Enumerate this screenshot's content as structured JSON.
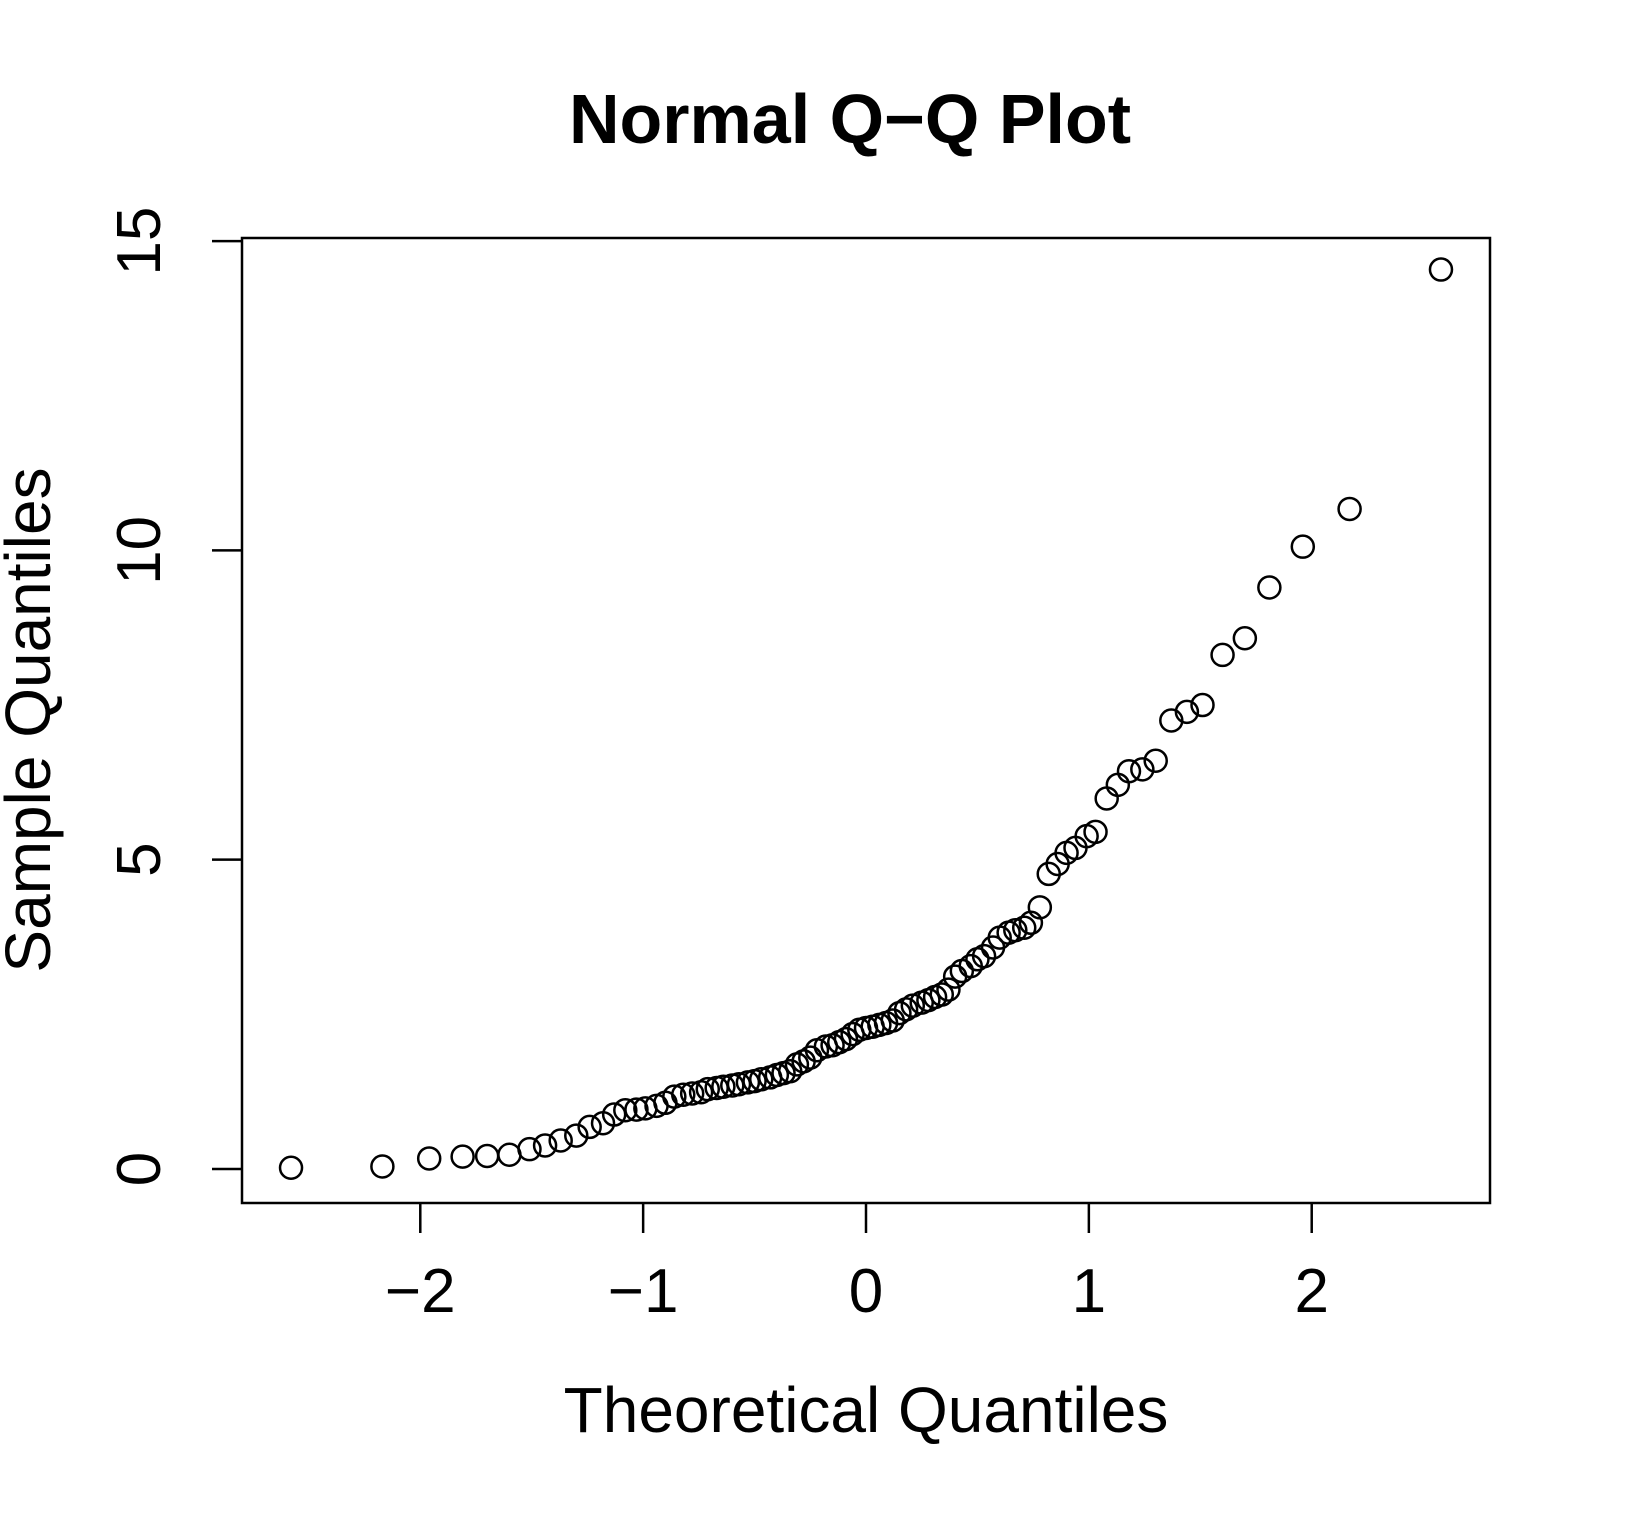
{
  "chart_data": {
    "type": "scatter",
    "title": "Normal Q−Q Plot",
    "xlabel": "Theoretical Quantiles",
    "ylabel": "Sample Quantiles",
    "xlim": [
      -2.8,
      2.8
    ],
    "ylim": [
      -0.55,
      15.05
    ],
    "xticks": [
      -2,
      -1,
      0,
      1,
      2
    ],
    "xtick_labels": [
      "−2",
      "−1",
      "0",
      "1",
      "2"
    ],
    "yticks": [
      0,
      5,
      10,
      15
    ],
    "ytick_labels": [
      "0",
      "5",
      "10",
      "15"
    ],
    "grid": false,
    "legend": "none",
    "marker": "open-circle",
    "points": [
      [
        -2.58,
        0.02
      ],
      [
        -2.17,
        0.04
      ],
      [
        -1.96,
        0.17
      ],
      [
        -1.81,
        0.2
      ],
      [
        -1.7,
        0.21
      ],
      [
        -1.6,
        0.23
      ],
      [
        -1.51,
        0.32
      ],
      [
        -1.44,
        0.38
      ],
      [
        -1.37,
        0.46
      ],
      [
        -1.3,
        0.54
      ],
      [
        -1.24,
        0.68
      ],
      [
        -1.18,
        0.74
      ],
      [
        -1.13,
        0.88
      ],
      [
        -1.08,
        0.95
      ],
      [
        -1.03,
        0.96
      ],
      [
        -0.99,
        0.98
      ],
      [
        -0.94,
        1.02
      ],
      [
        -0.9,
        1.07
      ],
      [
        -0.86,
        1.17
      ],
      [
        -0.82,
        1.2
      ],
      [
        -0.78,
        1.22
      ],
      [
        -0.74,
        1.24
      ],
      [
        -0.71,
        1.29
      ],
      [
        -0.67,
        1.31
      ],
      [
        -0.64,
        1.33
      ],
      [
        -0.6,
        1.35
      ],
      [
        -0.57,
        1.37
      ],
      [
        -0.53,
        1.4
      ],
      [
        -0.5,
        1.42
      ],
      [
        -0.47,
        1.45
      ],
      [
        -0.43,
        1.48
      ],
      [
        -0.4,
        1.52
      ],
      [
        -0.37,
        1.55
      ],
      [
        -0.34,
        1.58
      ],
      [
        -0.31,
        1.69
      ],
      [
        -0.28,
        1.74
      ],
      [
        -0.25,
        1.8
      ],
      [
        -0.22,
        1.92
      ],
      [
        -0.18,
        1.98
      ],
      [
        -0.15,
        2.0
      ],
      [
        -0.12,
        2.05
      ],
      [
        -0.09,
        2.1
      ],
      [
        -0.06,
        2.18
      ],
      [
        -0.03,
        2.25
      ],
      [
        0.0,
        2.28
      ],
      [
        0.03,
        2.3
      ],
      [
        0.06,
        2.33
      ],
      [
        0.09,
        2.36
      ],
      [
        0.12,
        2.4
      ],
      [
        0.15,
        2.52
      ],
      [
        0.18,
        2.58
      ],
      [
        0.21,
        2.64
      ],
      [
        0.25,
        2.69
      ],
      [
        0.28,
        2.73
      ],
      [
        0.31,
        2.78
      ],
      [
        0.34,
        2.82
      ],
      [
        0.37,
        2.9
      ],
      [
        0.4,
        3.11
      ],
      [
        0.43,
        3.2
      ],
      [
        0.47,
        3.28
      ],
      [
        0.5,
        3.39
      ],
      [
        0.53,
        3.44
      ],
      [
        0.57,
        3.58
      ],
      [
        0.6,
        3.74
      ],
      [
        0.64,
        3.82
      ],
      [
        0.67,
        3.86
      ],
      [
        0.71,
        3.9
      ],
      [
        0.74,
        3.98
      ],
      [
        0.78,
        4.23
      ],
      [
        0.82,
        4.77
      ],
      [
        0.86,
        4.93
      ],
      [
        0.9,
        5.11
      ],
      [
        0.94,
        5.19
      ],
      [
        0.99,
        5.38
      ],
      [
        1.03,
        5.45
      ],
      [
        1.08,
        5.99
      ],
      [
        1.13,
        6.21
      ],
      [
        1.18,
        6.43
      ],
      [
        1.24,
        6.46
      ],
      [
        1.3,
        6.6
      ],
      [
        1.37,
        7.25
      ],
      [
        1.44,
        7.39
      ],
      [
        1.51,
        7.5
      ],
      [
        1.6,
        8.31
      ],
      [
        1.7,
        8.58
      ],
      [
        1.81,
        9.4
      ],
      [
        1.96,
        10.06
      ],
      [
        2.17,
        10.67
      ],
      [
        2.58,
        14.54
      ]
    ]
  }
}
